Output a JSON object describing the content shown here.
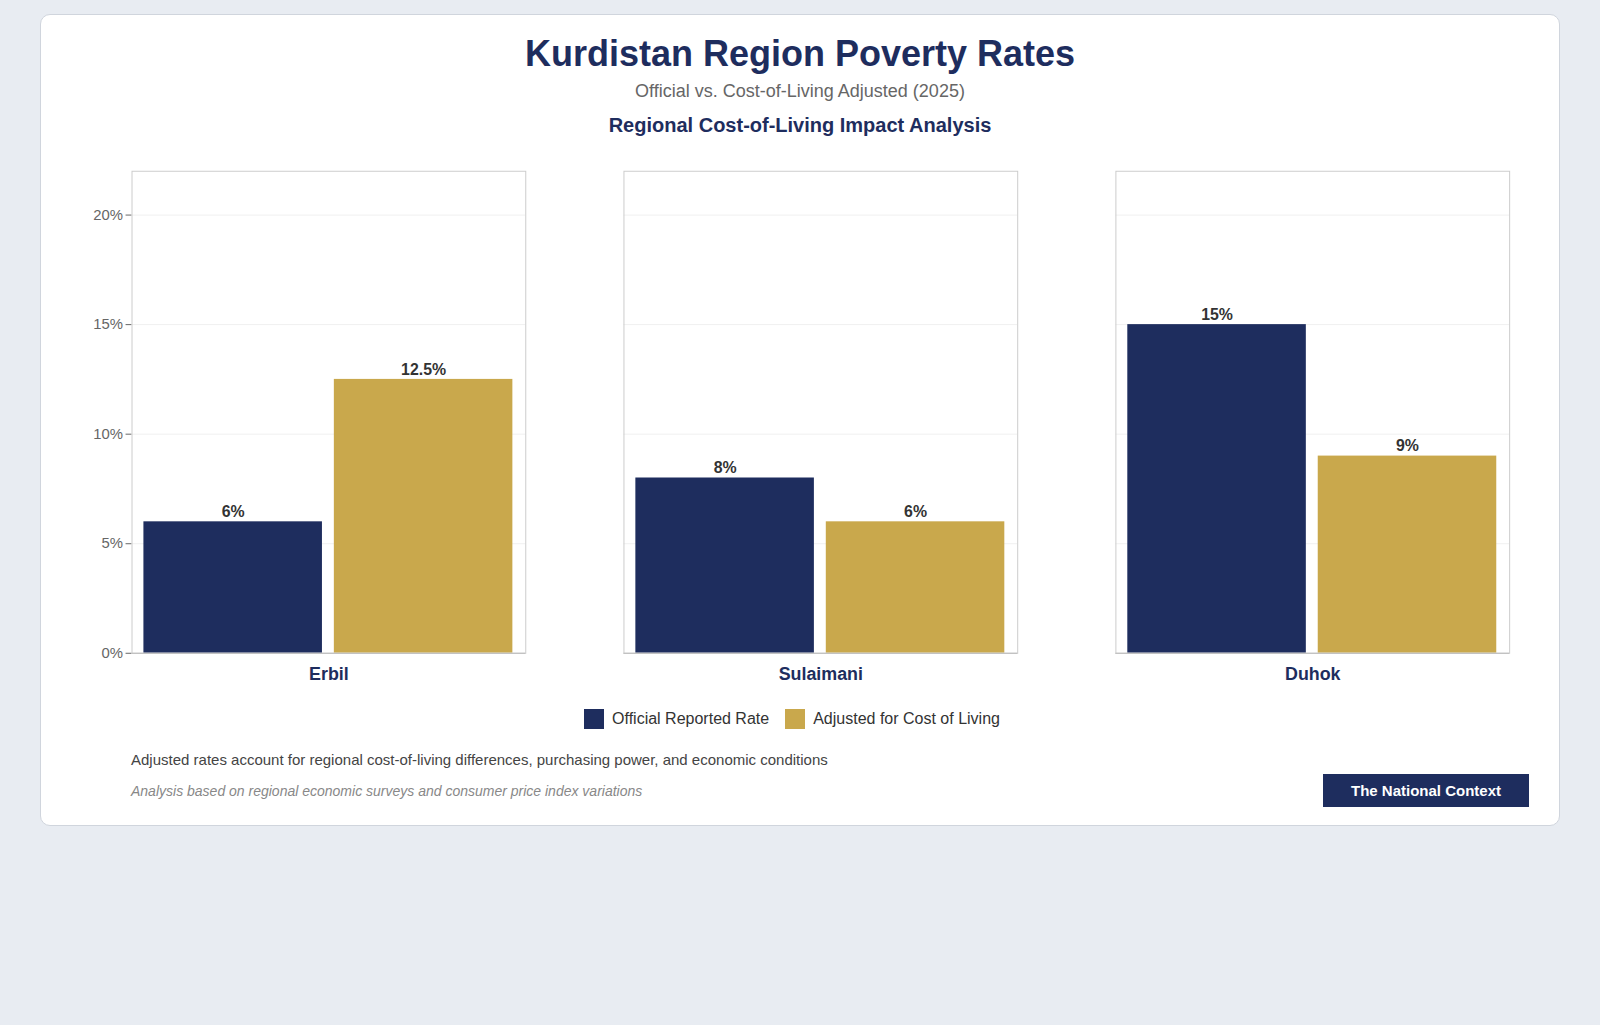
{
  "chart_data": {
    "type": "bar",
    "title": "Kurdistan Region Poverty Rates",
    "subtitle": "Official vs. Cost-of-Living Adjusted (2025)",
    "annotations": [
      "Regional Cost-of-Living Impact Analysis",
      "Adjusted rates account for regional cost-of-living differences, purchasing power, and economic conditions",
      "Analysis based on regional economic surveys and consumer price index variations",
      "The National Context"
    ],
    "categories": [
      "Erbil",
      "Sulaimani",
      "Duhok"
    ],
    "series": [
      {
        "name": "Official Reported Rate",
        "color": "#1e2d5e",
        "values": [
          6,
          8,
          15
        ],
        "value_labels": [
          "6%",
          "8%",
          "15%"
        ]
      },
      {
        "name": "Adjusted for Cost of Living",
        "color": "#c9a84c",
        "values": [
          12.5,
          6,
          9
        ],
        "value_labels": [
          "12.5%",
          "6%",
          "9%"
        ]
      }
    ],
    "ylim": [
      0,
      22
    ],
    "yticks": [
      {
        "value": 0,
        "label": "0%"
      },
      {
        "value": 5,
        "label": "5%"
      },
      {
        "value": 10,
        "label": "10%"
      },
      {
        "value": 15,
        "label": "15%"
      },
      {
        "value": 20,
        "label": "20%"
      }
    ],
    "grid": true,
    "legend": "bottom",
    "data_labels": true
  }
}
